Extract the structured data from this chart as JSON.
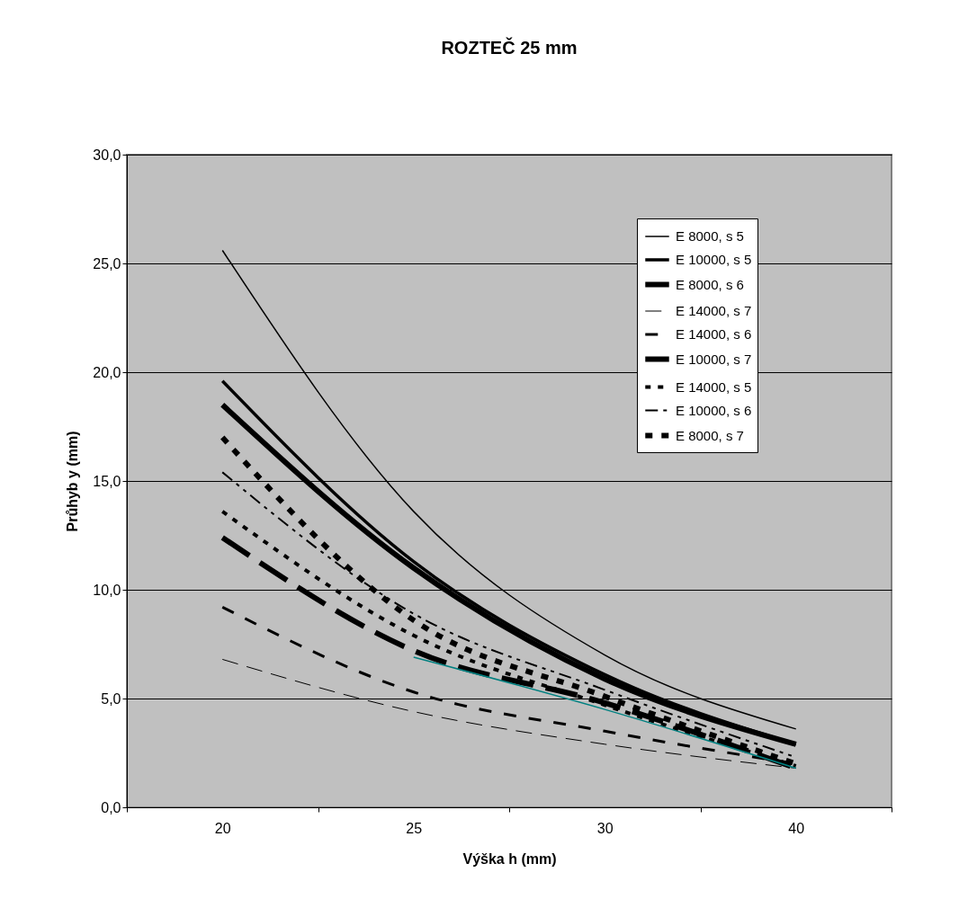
{
  "chart_data": {
    "type": "line",
    "title": "ROZTEČ 25 mm",
    "xlabel": "Výška h (mm)",
    "ylabel": "Průhyb y (mm)",
    "categories": [
      "20",
      "25",
      "30",
      "40"
    ],
    "ylim": [
      0,
      30
    ],
    "yticks": [
      {
        "value": 0,
        "label": "0,0"
      },
      {
        "value": 5,
        "label": "5,0"
      },
      {
        "value": 10,
        "label": "10,0"
      },
      {
        "value": 15,
        "label": "15,0"
      },
      {
        "value": 20,
        "label": "20,0"
      },
      {
        "value": 25,
        "label": "25,0"
      },
      {
        "value": 30,
        "label": "30,0"
      }
    ],
    "grid": "y",
    "legend": "top right",
    "marker": "none",
    "series": [
      {
        "name": "E 8000, s 5",
        "color": "#000000",
        "line_style": "solid",
        "values": [
          25.6,
          13.6,
          7.0,
          3.6
        ]
      },
      {
        "name": "E 10000, s 5",
        "color": "#000000",
        "line_style": "solid",
        "values": [
          19.6,
          11.3,
          6.1,
          2.9
        ]
      },
      {
        "name": "E 8000, s 6",
        "color": "#000000",
        "line_style": "solid",
        "values": [
          18.5,
          11.0,
          5.9,
          2.9
        ]
      },
      {
        "name": "E 14000, s 7",
        "color": "#000000",
        "line_style": "dashed",
        "values": [
          6.8,
          4.4,
          2.9,
          1.8
        ]
      },
      {
        "name": "E 14000, s 6",
        "color": "#000000",
        "line_style": "dashed",
        "values": [
          9.2,
          5.3,
          3.5,
          2.0
        ]
      },
      {
        "name": "E 10000, s 7",
        "color": "#000000",
        "line_style": "dashed",
        "values": [
          12.4,
          7.2,
          4.8,
          1.8
        ]
      },
      {
        "name": "E 14000, s 5",
        "color": "#000000",
        "line_style": "dotted",
        "values": [
          13.6,
          7.9,
          4.7,
          1.9
        ]
      },
      {
        "name": "E 10000, s 6",
        "color": "#000000",
        "line_style": "dashed",
        "values": [
          15.4,
          8.9,
          5.4,
          2.3
        ]
      },
      {
        "name": "E 8000, s 7",
        "color": "#000000",
        "line_style": "dotted",
        "values": [
          17.0,
          8.6,
          5.1,
          2.0
        ]
      },
      {
        "color": "#008080",
        "line_style": "solid",
        "values": [
          null,
          6.9,
          4.5,
          1.8
        ]
      }
    ]
  }
}
